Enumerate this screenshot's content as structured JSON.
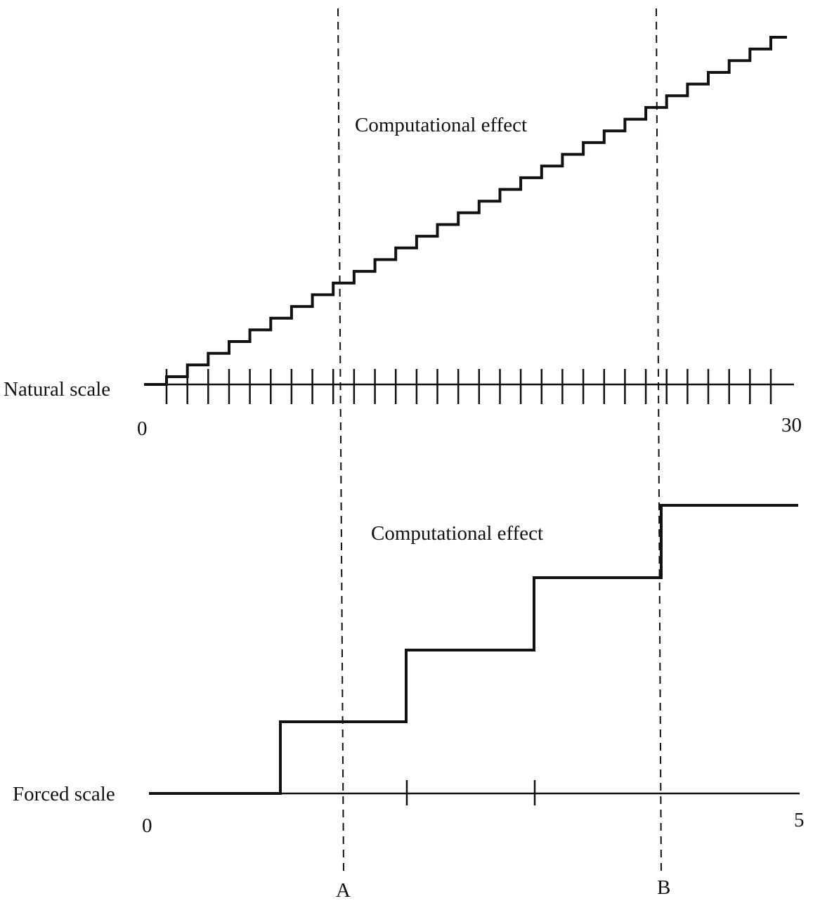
{
  "figure": {
    "natural_panel": {
      "effect_label": "Computational effect",
      "scale_label": "Natural scale",
      "min_label": "0",
      "max_label": "30",
      "scale_min": 0,
      "scale_max": 30,
      "steps": 30
    },
    "forced_panel": {
      "effect_label": "Computational effect",
      "scale_label": "Forced scale",
      "min_label": "0",
      "max_label": "5",
      "scale_min": 0,
      "scale_max": 5,
      "steps": 5
    },
    "markers": [
      {
        "label": "A"
      },
      {
        "label": "B"
      }
    ]
  }
}
